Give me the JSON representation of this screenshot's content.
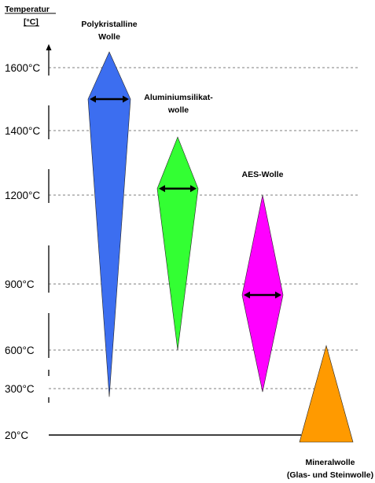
{
  "chart_data": {
    "type": "range",
    "ylabel_line1": "Temperatur",
    "ylabel_line2": "[°C]",
    "ticks": [
      {
        "value": 1600,
        "label": "1600°C"
      },
      {
        "value": 1400,
        "label": "1400°C"
      },
      {
        "value": 1200,
        "label": "1200°C"
      },
      {
        "value": 900,
        "label": "900°C"
      },
      {
        "value": 600,
        "label": "600°C"
      },
      {
        "value": 300,
        "label": "300°C"
      },
      {
        "value": 20,
        "label": "20°C"
      }
    ],
    "grid": "dashed",
    "series": [
      {
        "name_lines": [
          "Polykristalline",
          "Wolle"
        ],
        "color": "#3c6ef0",
        "shape": "diamond",
        "min": 250,
        "max": 1650,
        "typical": 1500
      },
      {
        "name_lines": [
          "Aluminiumsilikat-",
          "wolle"
        ],
        "color": "#33ff33",
        "shape": "diamond",
        "min": 600,
        "max": 1380,
        "typical": 1220
      },
      {
        "name_lines": [
          "AES-Wolle"
        ],
        "color": "#ff00ff",
        "shape": "diamond",
        "min": 280,
        "max": 1200,
        "typical": 850
      },
      {
        "name_lines": [
          "Mineralwolle",
          "(Glas- und Steinwolle)"
        ],
        "color": "#ff9a00",
        "shape": "triangle",
        "min": 20,
        "max": 620
      }
    ]
  }
}
